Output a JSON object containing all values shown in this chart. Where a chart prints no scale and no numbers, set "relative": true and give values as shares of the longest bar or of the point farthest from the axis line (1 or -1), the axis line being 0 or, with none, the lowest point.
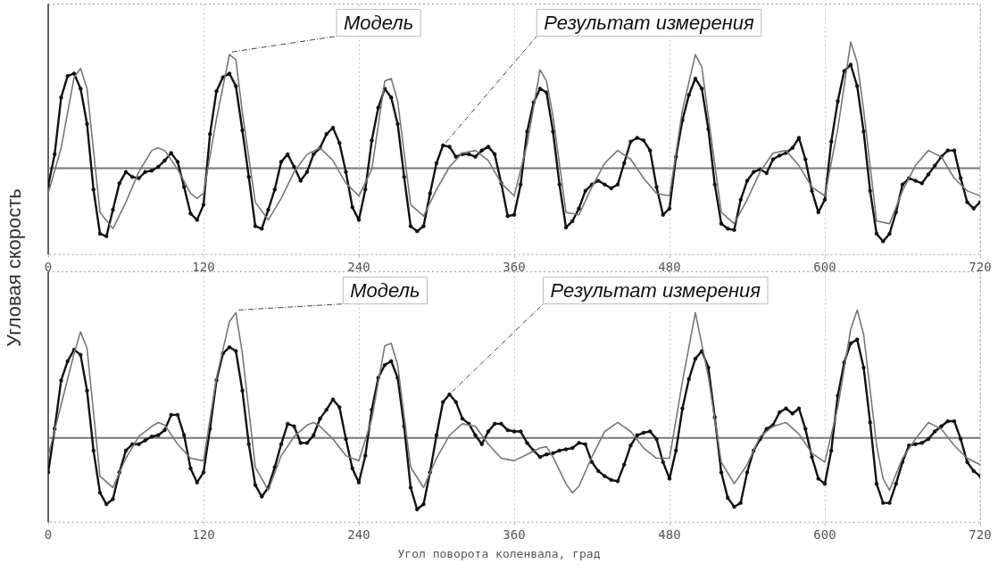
{
  "chart_data": [
    {
      "type": "line",
      "relative": true,
      "ylabel": "Угловая скорость",
      "xlim": [
        0,
        720
      ],
      "xticks": [
        0,
        120,
        240,
        360,
        480,
        600,
        720
      ],
      "grid": "x",
      "legend": false,
      "series": [
        {
          "name": "Модель",
          "color": "#777777",
          "marker": "none",
          "x": [
            0,
            10,
            20,
            25,
            30,
            40,
            50,
            60,
            70,
            80,
            85,
            90,
            100,
            110,
            115,
            120,
            130,
            140,
            145,
            150,
            160,
            170,
            180,
            190,
            200,
            210,
            220,
            230,
            240,
            250,
            260,
            265,
            270,
            280,
            290,
            300,
            310,
            320,
            330,
            340,
            350,
            360,
            370,
            380,
            385,
            390,
            400,
            410,
            420,
            430,
            440,
            450,
            460,
            470,
            480,
            490,
            500,
            505,
            510,
            520,
            530,
            540,
            550,
            560,
            570,
            580,
            590,
            600,
            610,
            620,
            625,
            630,
            640,
            650,
            660,
            670,
            680,
            690,
            700,
            710,
            720
          ],
          "values": [
            -0.2,
            0.16,
            0.72,
            0.79,
            0.63,
            -0.35,
            -0.48,
            -0.27,
            -0.03,
            0.14,
            0.16,
            0.14,
            -0.01,
            -0.2,
            -0.24,
            -0.2,
            0.39,
            0.9,
            0.86,
            0.44,
            -0.27,
            -0.41,
            -0.24,
            -0.03,
            0.11,
            0.16,
            0.06,
            -0.12,
            -0.22,
            -0.01,
            0.69,
            0.71,
            0.53,
            -0.29,
            -0.38,
            -0.17,
            0.01,
            0.12,
            0.14,
            0.06,
            -0.12,
            -0.22,
            0.19,
            0.78,
            0.69,
            0.41,
            -0.35,
            -0.37,
            -0.15,
            0.04,
            0.14,
            0.07,
            -0.08,
            -0.2,
            -0.22,
            0.46,
            0.9,
            0.8,
            0.41,
            -0.35,
            -0.44,
            -0.25,
            -0.03,
            0.12,
            0.14,
            0.02,
            -0.15,
            -0.22,
            0.31,
            1,
            0.84,
            0.46,
            -0.42,
            -0.44,
            -0.18,
            0.02,
            0.14,
            0.09,
            -0.08,
            -0.18,
            -0.22
          ]
        },
        {
          "name": "Результат измерения",
          "color": "#111111",
          "marker": "circle",
          "x": [
            0,
            5,
            10,
            15,
            20,
            25,
            30,
            35,
            40,
            45,
            50,
            55,
            60,
            65,
            70,
            75,
            80,
            85,
            90,
            95,
            100,
            105,
            110,
            115,
            120,
            125,
            130,
            135,
            140,
            145,
            150,
            155,
            160,
            165,
            170,
            175,
            180,
            185,
            190,
            195,
            200,
            205,
            210,
            215,
            220,
            225,
            230,
            235,
            240,
            245,
            250,
            255,
            260,
            265,
            270,
            275,
            280,
            285,
            290,
            295,
            300,
            305,
            310,
            315,
            320,
            325,
            330,
            335,
            340,
            345,
            350,
            355,
            360,
            365,
            370,
            375,
            380,
            385,
            390,
            395,
            400,
            405,
            410,
            415,
            420,
            425,
            430,
            435,
            440,
            445,
            450,
            455,
            460,
            465,
            470,
            475,
            480,
            485,
            490,
            495,
            500,
            505,
            510,
            515,
            520,
            525,
            530,
            535,
            540,
            545,
            550,
            555,
            560,
            565,
            570,
            575,
            580,
            585,
            590,
            595,
            600,
            605,
            610,
            615,
            620,
            625,
            630,
            635,
            640,
            645,
            650,
            655,
            660,
            665,
            670,
            675,
            680,
            685,
            690,
            695,
            700,
            705,
            710,
            715,
            720
          ],
          "values": [
            -0.14,
            0.11,
            0.56,
            0.73,
            0.75,
            0.63,
            0.35,
            -0.17,
            -0.52,
            -0.54,
            -0.33,
            -0.12,
            -0.03,
            -0.07,
            -0.08,
            -0.03,
            -0.02,
            0.01,
            0.06,
            0.12,
            0.05,
            -0.15,
            -0.36,
            -0.41,
            -0.29,
            0.27,
            0.61,
            0.72,
            0.75,
            0.65,
            0.3,
            -0.07,
            -0.46,
            -0.48,
            -0.33,
            -0.17,
            0.05,
            0.11,
            0.01,
            -0.1,
            -0.03,
            0.11,
            0.16,
            0.27,
            0.32,
            0.2,
            -0.03,
            -0.31,
            -0.41,
            -0.17,
            0.22,
            0.48,
            0.63,
            0.56,
            0.35,
            -0.07,
            -0.46,
            -0.5,
            -0.46,
            -0.2,
            0.04,
            0.18,
            0.17,
            0.09,
            0.11,
            0.11,
            0.09,
            0.14,
            0.17,
            0.11,
            -0.12,
            -0.38,
            -0.37,
            -0.13,
            0.29,
            0.52,
            0.63,
            0.6,
            0.29,
            -0.13,
            -0.47,
            -0.42,
            -0.32,
            -0.18,
            -0.13,
            -0.1,
            -0.13,
            -0.16,
            -0.13,
            0.04,
            0.21,
            0.24,
            0.22,
            0.14,
            -0.15,
            -0.37,
            -0.32,
            0.09,
            0.38,
            0.58,
            0.71,
            0.63,
            0.31,
            -0.13,
            -0.44,
            -0.48,
            -0.49,
            -0.25,
            -0.1,
            -0.03,
            -0.01,
            -0.04,
            0.07,
            0.1,
            0.12,
            0.16,
            0.24,
            0.07,
            -0.18,
            -0.35,
            -0.25,
            0.21,
            0.53,
            0.77,
            0.82,
            0.65,
            0.29,
            -0.18,
            -0.52,
            -0.58,
            -0.52,
            -0.35,
            -0.13,
            -0.08,
            -0.1,
            -0.12,
            -0.05,
            0.02,
            0.09,
            0.14,
            0.14,
            -0.08,
            -0.27,
            -0.32,
            -0.27
          ]
        }
      ]
    },
    {
      "type": "line",
      "relative": true,
      "xlabel": "Угол поворота коленвала, град",
      "xlim": [
        0,
        720
      ],
      "xticks": [
        0,
        120,
        240,
        360,
        480,
        600,
        720
      ],
      "grid": "x",
      "legend": false,
      "series": [
        {
          "name": "Модель",
          "color": "#777777",
          "marker": "none",
          "x": [
            0,
            10,
            20,
            25,
            30,
            40,
            50,
            60,
            70,
            80,
            85,
            90,
            100,
            110,
            120,
            130,
            140,
            145,
            150,
            160,
            170,
            180,
            190,
            200,
            205,
            210,
            220,
            230,
            240,
            250,
            260,
            265,
            270,
            280,
            290,
            300,
            310,
            320,
            330,
            340,
            350,
            360,
            370,
            380,
            385,
            390,
            400,
            405,
            410,
            420,
            430,
            440,
            450,
            460,
            470,
            480,
            490,
            500,
            510,
            520,
            530,
            540,
            550,
            560,
            570,
            580,
            590,
            600,
            610,
            620,
            625,
            630,
            640,
            645,
            650,
            660,
            670,
            680,
            690,
            700,
            710,
            720
          ],
          "values": [
            -0.14,
            0.26,
            0.66,
            0.83,
            0.7,
            -0.3,
            -0.39,
            -0.16,
            0.01,
            0.09,
            0.12,
            0.1,
            -0.05,
            -0.16,
            -0.18,
            0.47,
            0.91,
            0.98,
            0.66,
            -0.23,
            -0.41,
            -0.14,
            0.01,
            0.1,
            0.12,
            0.09,
            -0.01,
            -0.14,
            -0.18,
            0.15,
            0.72,
            0.74,
            0.57,
            -0.23,
            -0.39,
            -0.16,
            0.02,
            0.11,
            0.09,
            -0.05,
            -0.16,
            -0.18,
            -0.13,
            -0.08,
            -0.07,
            -0.15,
            -0.36,
            -0.43,
            -0.38,
            -0.15,
            0.05,
            0.12,
            0.05,
            -0.08,
            -0.16,
            -0.16,
            0.44,
            0.98,
            0.48,
            -0.19,
            -0.36,
            -0.21,
            0.01,
            0.09,
            0.12,
            0.03,
            -0.12,
            -0.19,
            0.24,
            0.85,
            1,
            0.81,
            -0.06,
            -0.32,
            -0.41,
            -0.16,
            -0.01,
            0.12,
            0.07,
            -0.06,
            -0.16,
            -0.21
          ]
        },
        {
          "name": "Результат измерения",
          "color": "#111111",
          "marker": "circle",
          "x": [
            0,
            5,
            10,
            15,
            20,
            25,
            30,
            35,
            40,
            45,
            50,
            55,
            60,
            65,
            70,
            75,
            80,
            85,
            90,
            95,
            100,
            105,
            110,
            115,
            120,
            125,
            130,
            135,
            140,
            145,
            150,
            155,
            160,
            165,
            170,
            175,
            180,
            185,
            190,
            195,
            200,
            205,
            210,
            215,
            220,
            225,
            230,
            235,
            240,
            245,
            250,
            255,
            260,
            265,
            270,
            275,
            280,
            285,
            290,
            295,
            300,
            305,
            310,
            315,
            320,
            325,
            330,
            335,
            340,
            345,
            350,
            355,
            360,
            365,
            370,
            375,
            380,
            385,
            390,
            395,
            400,
            405,
            410,
            415,
            420,
            425,
            430,
            435,
            440,
            445,
            450,
            455,
            460,
            465,
            470,
            475,
            480,
            485,
            490,
            495,
            500,
            505,
            510,
            515,
            520,
            525,
            530,
            535,
            540,
            545,
            550,
            555,
            560,
            565,
            570,
            575,
            580,
            585,
            590,
            595,
            600,
            605,
            610,
            615,
            620,
            625,
            630,
            635,
            640,
            645,
            650,
            655,
            660,
            665,
            670,
            675,
            680,
            685,
            690,
            695,
            700,
            705,
            710,
            715,
            720
          ],
          "values": [
            -0.27,
            0.07,
            0.45,
            0.6,
            0.69,
            0.65,
            0.37,
            -0.1,
            -0.43,
            -0.52,
            -0.48,
            -0.27,
            -0.1,
            -0.05,
            -0.05,
            -0.02,
            0.01,
            0.02,
            0.06,
            0.18,
            0.18,
            0.02,
            -0.24,
            -0.35,
            -0.27,
            0.07,
            0.45,
            0.66,
            0.71,
            0.68,
            0.37,
            -0.05,
            -0.37,
            -0.46,
            -0.39,
            -0.23,
            -0.05,
            0.11,
            0.09,
            -0.04,
            -0.04,
            0.02,
            0.15,
            0.22,
            0.3,
            0.24,
            -0.01,
            -0.24,
            -0.35,
            -0.14,
            0.22,
            0.47,
            0.57,
            0.6,
            0.47,
            0.09,
            -0.39,
            -0.56,
            -0.52,
            -0.27,
            0.02,
            0.28,
            0.34,
            0.28,
            0.15,
            0.11,
            0.02,
            -0.05,
            0.05,
            0.11,
            0.11,
            0.06,
            0.05,
            0.05,
            -0.04,
            -0.1,
            -0.15,
            -0.13,
            -0.12,
            -0.1,
            -0.09,
            -0.08,
            -0.04,
            -0.05,
            -0.19,
            -0.26,
            -0.3,
            -0.33,
            -0.34,
            -0.21,
            -0.06,
            0.02,
            0.04,
            0.05,
            -0.01,
            -0.19,
            -0.32,
            -0.1,
            0.23,
            0.46,
            0.62,
            0.68,
            0.55,
            0.16,
            -0.27,
            -0.47,
            -0.54,
            -0.51,
            -0.27,
            -0.1,
            -0.01,
            0.07,
            0.1,
            0.2,
            0.23,
            0.19,
            0.23,
            0.07,
            -0.15,
            -0.32,
            -0.36,
            -0.1,
            0.33,
            0.59,
            0.74,
            0.77,
            0.55,
            0.12,
            -0.36,
            -0.51,
            -0.51,
            -0.36,
            -0.19,
            -0.06,
            -0.05,
            -0.04,
            -0.01,
            0.05,
            0.09,
            0.13,
            0.13,
            -0.01,
            -0.19,
            -0.26,
            -0.3
          ]
        }
      ]
    }
  ]
}
